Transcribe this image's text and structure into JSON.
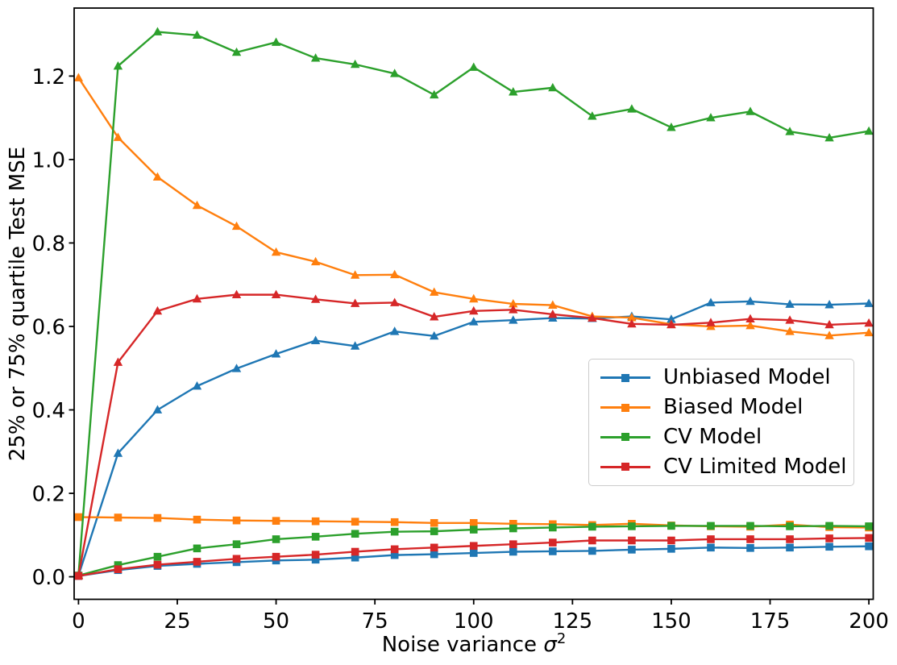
{
  "figure": {
    "background": "#ffffff"
  },
  "chart_data": {
    "type": "line",
    "title": "",
    "xlabel": "Noise variance σ²",
    "xlabel_parts": {
      "prefix": "Noise variance ",
      "symbol": "σ",
      "exponent": "2"
    },
    "ylabel": "25% or 75% quartile Test MSE",
    "xlim": [
      -1.1,
      201.1
    ],
    "ylim": [
      -0.054,
      1.363
    ],
    "grid": false,
    "legend_position": "center-right",
    "xticks": [
      0,
      25,
      50,
      75,
      100,
      125,
      150,
      175,
      200
    ],
    "xtick_labels": [
      "0",
      "25",
      "50",
      "75",
      "100",
      "125",
      "150",
      "175",
      "200"
    ],
    "yticks": [
      0.0,
      0.2,
      0.4,
      0.6,
      0.8,
      1.0,
      1.2
    ],
    "ytick_labels": [
      "0.0",
      "0.2",
      "0.4",
      "0.6",
      "0.8",
      "1.0",
      "1.2"
    ],
    "x": [
      0,
      10,
      20,
      30,
      40,
      50,
      60,
      70,
      80,
      90,
      100,
      110,
      120,
      130,
      140,
      150,
      160,
      170,
      180,
      190,
      200
    ],
    "series": [
      {
        "name": "Unbiased Model (75% quartile)",
        "color": "#1f77b4",
        "marker": "triangle",
        "values": [
          0.003,
          0.296,
          0.4,
          0.457,
          0.499,
          0.534,
          0.566,
          0.553,
          0.588,
          0.577,
          0.611,
          0.615,
          0.62,
          0.619,
          0.624,
          0.617,
          0.657,
          0.66,
          0.653,
          0.652,
          0.655
        ]
      },
      {
        "name": "Unbiased Model (25% quartile)",
        "color": "#1f77b4",
        "marker": "square",
        "values": [
          0.002,
          0.016,
          0.026,
          0.031,
          0.035,
          0.039,
          0.041,
          0.046,
          0.052,
          0.054,
          0.057,
          0.06,
          0.061,
          0.062,
          0.065,
          0.067,
          0.07,
          0.069,
          0.07,
          0.072,
          0.073
        ]
      },
      {
        "name": "Biased Model (75% quartile)",
        "color": "#ff7f0e",
        "marker": "triangle",
        "values": [
          1.196,
          1.053,
          0.958,
          0.89,
          0.84,
          0.778,
          0.755,
          0.723,
          0.724,
          0.682,
          0.666,
          0.654,
          0.651,
          0.624,
          0.621,
          0.605,
          0.6,
          0.602,
          0.588,
          0.578,
          0.585
        ]
      },
      {
        "name": "Biased Model (25% quartile)",
        "color": "#ff7f0e",
        "marker": "square",
        "values": [
          0.143,
          0.142,
          0.141,
          0.137,
          0.135,
          0.134,
          0.133,
          0.132,
          0.131,
          0.129,
          0.129,
          0.127,
          0.126,
          0.124,
          0.127,
          0.123,
          0.121,
          0.12,
          0.125,
          0.119,
          0.118
        ]
      },
      {
        "name": "CV Model (75% quartile)",
        "color": "#2ca02c",
        "marker": "triangle",
        "values": [
          0.004,
          1.224,
          1.306,
          1.298,
          1.257,
          1.281,
          1.243,
          1.228,
          1.206,
          1.155,
          1.221,
          1.162,
          1.172,
          1.104,
          1.121,
          1.077,
          1.1,
          1.115,
          1.067,
          1.052,
          1.068
        ]
      },
      {
        "name": "CV Model (25% quartile)",
        "color": "#2ca02c",
        "marker": "square",
        "values": [
          0.003,
          0.028,
          0.048,
          0.068,
          0.078,
          0.09,
          0.096,
          0.103,
          0.108,
          0.109,
          0.113,
          0.116,
          0.118,
          0.12,
          0.121,
          0.122,
          0.122,
          0.122,
          0.121,
          0.122,
          0.121
        ]
      },
      {
        "name": "CV Limited Model (75% quartile)",
        "color": "#d62728",
        "marker": "triangle",
        "values": [
          0.003,
          0.514,
          0.637,
          0.666,
          0.676,
          0.676,
          0.665,
          0.655,
          0.657,
          0.623,
          0.637,
          0.64,
          0.629,
          0.62,
          0.606,
          0.604,
          0.609,
          0.618,
          0.615,
          0.604,
          0.608
        ]
      },
      {
        "name": "CV Limited Model (25% quartile)",
        "color": "#d62728",
        "marker": "square",
        "values": [
          0.002,
          0.018,
          0.029,
          0.036,
          0.043,
          0.048,
          0.053,
          0.06,
          0.066,
          0.07,
          0.074,
          0.078,
          0.082,
          0.087,
          0.087,
          0.087,
          0.09,
          0.09,
          0.09,
          0.092,
          0.093
        ]
      }
    ]
  },
  "legend": {
    "items": [
      {
        "label": "Unbiased Model",
        "color": "#1f77b4"
      },
      {
        "label": "Biased Model",
        "color": "#ff7f0e"
      },
      {
        "label": "CV Model",
        "color": "#2ca02c"
      },
      {
        "label": "CV Limited Model",
        "color": "#d62728"
      }
    ]
  }
}
